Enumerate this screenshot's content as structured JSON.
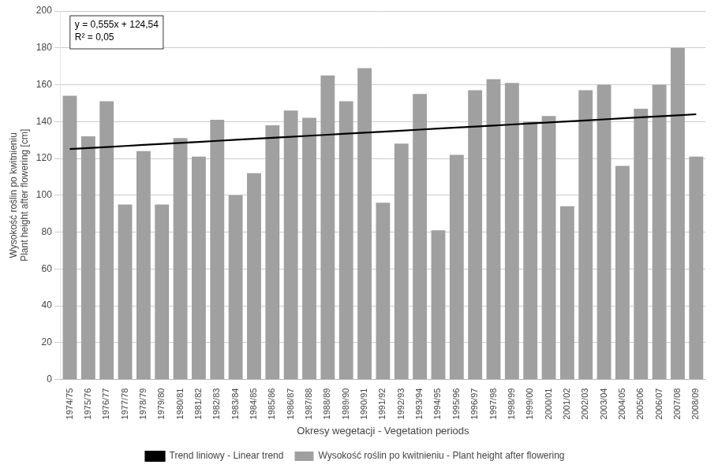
{
  "chart_data": {
    "type": "bar",
    "categories": [
      "1974/75",
      "1975/76",
      "1976/77",
      "1977/78",
      "1978/79",
      "1979/80",
      "1980/81",
      "1981/82",
      "1982/83",
      "1983/84",
      "1984/85",
      "1985/86",
      "1986/87",
      "1987/88",
      "1988/89",
      "1989/90",
      "1990/91",
      "1991/92",
      "1992/93",
      "1993/94",
      "1994/95",
      "1995/96",
      "1996/97",
      "1997/98",
      "1998/99",
      "1999/00",
      "2000/01",
      "2001/02",
      "2002/03",
      "2003/04",
      "2004/05",
      "2005/06",
      "2006/07",
      "2007/08",
      "2008/09"
    ],
    "series": [
      {
        "name": "Wysokość roślin po kwitnieniu - Plant height after flowering",
        "type": "bar",
        "color": "#a0a0a0",
        "values": [
          154,
          132,
          151,
          95,
          124,
          95,
          131,
          121,
          141,
          100,
          112,
          138,
          146,
          142,
          165,
          151,
          169,
          96,
          128,
          155,
          81,
          122,
          157,
          163,
          161,
          140,
          143,
          94,
          157,
          160,
          116,
          147,
          160,
          180,
          121
        ]
      },
      {
        "name": "Trend liniowy - Linear trend",
        "type": "line",
        "color": "#000000",
        "marker": "none",
        "values": [
          125.095,
          125.65,
          126.205,
          126.76,
          127.315,
          127.87,
          128.425,
          128.98,
          129.535,
          130.09,
          130.645,
          131.2,
          131.755,
          132.31,
          132.865,
          133.42,
          133.975,
          134.53,
          135.085,
          135.64,
          136.195,
          136.75,
          137.305,
          137.86,
          138.415,
          138.97,
          139.525,
          140.08,
          140.635,
          141.19,
          141.745,
          142.3,
          142.855,
          143.41,
          143.965
        ]
      }
    ],
    "xlabel": "Okresy wegetacji - Vegetation periods",
    "ylabel": "Wysokość roślin po kwitnieniu\nPlant height after flowering [cm]",
    "ylim": [
      0,
      200
    ],
    "yticks": [
      0,
      20,
      40,
      60,
      80,
      100,
      120,
      140,
      160,
      180,
      200
    ],
    "annotations": [
      "y = 0,555x + 124,54",
      "R² = 0,05"
    ],
    "grid": true,
    "legend": "bottom"
  }
}
